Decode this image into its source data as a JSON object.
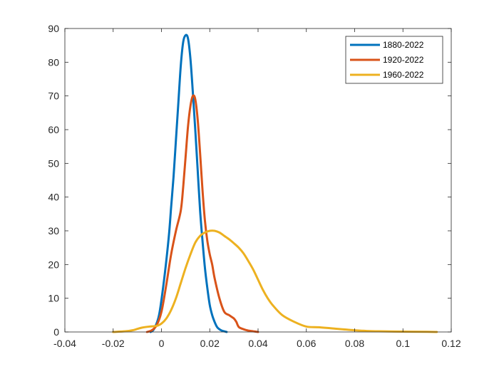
{
  "chart_data": {
    "type": "line",
    "title": "",
    "xlabel": "",
    "ylabel": "",
    "xlim": [
      -0.04,
      0.12
    ],
    "ylim": [
      0,
      90
    ],
    "xticks": [
      -0.04,
      -0.02,
      0,
      0.02,
      0.04,
      0.06,
      0.08,
      0.1,
      0.12
    ],
    "xtick_labels": [
      "-0.04",
      "-0.02",
      "0",
      "0.02",
      "0.04",
      "0.06",
      "0.08",
      "0.1",
      "0.12"
    ],
    "yticks": [
      0,
      10,
      20,
      30,
      40,
      50,
      60,
      70,
      80,
      90
    ],
    "ytick_labels": [
      "0",
      "10",
      "20",
      "30",
      "40",
      "50",
      "60",
      "70",
      "80",
      "90"
    ],
    "grid": false,
    "legend_position": "top-right",
    "series": [
      {
        "name": "1880-2022",
        "color": "#0072BD",
        "x": [
          -0.0045,
          -0.003,
          -0.001,
          0.001,
          0.003,
          0.004,
          0.005,
          0.006,
          0.007,
          0.008,
          0.009,
          0.01,
          0.011,
          0.012,
          0.013,
          0.014,
          0.015,
          0.016,
          0.017,
          0.018,
          0.019,
          0.02,
          0.021,
          0.022,
          0.023,
          0.024,
          0.025,
          0.026,
          0.027
        ],
        "y": [
          0,
          1,
          5,
          15,
          28,
          37,
          46,
          57,
          68,
          79,
          86,
          88,
          87,
          81,
          71,
          60,
          48,
          36,
          27,
          19,
          13,
          8,
          5,
          3,
          1.5,
          0.8,
          0.4,
          0.2,
          0
        ]
      },
      {
        "name": "1920-2022",
        "color": "#D95319",
        "x": [
          -0.006,
          -0.004,
          -0.002,
          0,
          0.002,
          0.004,
          0.006,
          0.008,
          0.009,
          0.01,
          0.011,
          0.012,
          0.013,
          0.014,
          0.015,
          0.016,
          0.017,
          0.018,
          0.019,
          0.02,
          0.021,
          0.022,
          0.024,
          0.026,
          0.028,
          0.029,
          0.03,
          0.031,
          0.032,
          0.034,
          0.036,
          0.038,
          0.04
        ],
        "y": [
          0,
          0.5,
          2,
          6,
          14,
          23,
          30,
          36,
          43,
          52,
          61,
          67,
          70,
          69,
          63,
          53,
          42,
          33,
          27,
          23,
          20,
          16,
          10,
          6,
          5,
          4.5,
          4,
          3,
          1.5,
          0.8,
          0.4,
          0.2,
          0
        ]
      },
      {
        "name": "1960-2022",
        "color": "#EDB120",
        "x": [
          -0.02,
          -0.015,
          -0.012,
          -0.01,
          -0.008,
          -0.005,
          -0.002,
          0,
          0.002,
          0.004,
          0.006,
          0.008,
          0.01,
          0.012,
          0.014,
          0.016,
          0.018,
          0.02,
          0.022,
          0.024,
          0.026,
          0.028,
          0.03,
          0.032,
          0.034,
          0.036,
          0.038,
          0.04,
          0.042,
          0.044,
          0.046,
          0.05,
          0.055,
          0.06,
          0.065,
          0.07,
          0.075,
          0.08,
          0.085,
          0.09,
          0.1,
          0.11,
          0.114
        ],
        "y": [
          0,
          0.2,
          0.5,
          0.9,
          1.3,
          1.6,
          1.8,
          2.5,
          4,
          6.5,
          10,
          14.5,
          19,
          23,
          26.5,
          28.5,
          29.5,
          30,
          30,
          29.5,
          28.5,
          27.5,
          26.3,
          25,
          23.3,
          21,
          18.5,
          15.5,
          12.5,
          10,
          8,
          5,
          3,
          1.6,
          1.4,
          1.1,
          0.8,
          0.5,
          0.3,
          0.2,
          0.1,
          0.05,
          0
        ]
      }
    ]
  }
}
